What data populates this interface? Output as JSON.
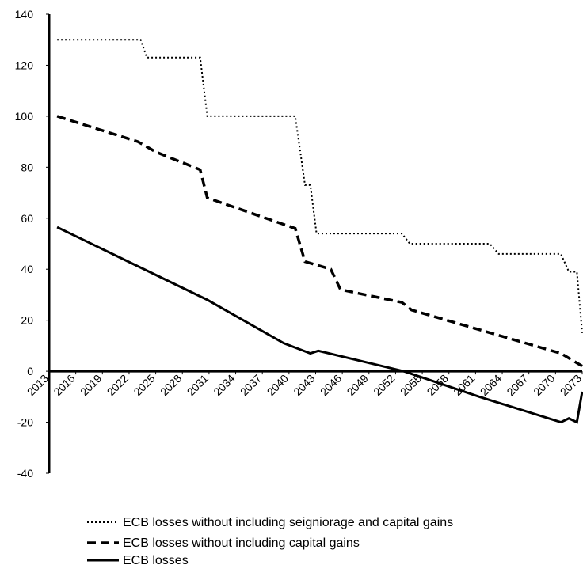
{
  "chart_data": {
    "type": "line",
    "xlim": [
      2013,
      2073
    ],
    "xticks": [
      2013,
      2016,
      2019,
      2022,
      2025,
      2028,
      2031,
      2034,
      2037,
      2040,
      2043,
      2046,
      2049,
      2052,
      2055,
      2058,
      2061,
      2064,
      2067,
      2070,
      2073
    ],
    "ylim": [
      -40,
      140
    ],
    "yticks": [
      -40,
      -20,
      0,
      20,
      40,
      60,
      80,
      100,
      120,
      140
    ],
    "grid": false,
    "legend": "bottom",
    "series": [
      {
        "name": "ECB losses without including seigniorage and capital gains",
        "color": "#000000",
        "style": "dotted",
        "x": [
          2013.9,
          2023.3,
          2024,
          2030,
          2030.8,
          2040.7,
          2041.8,
          2042.4,
          2043.1,
          2052.7,
          2053.6,
          2062.6,
          2063.6,
          2070.6,
          2071.5,
          2072.4,
          2073
        ],
        "values": [
          130,
          130,
          123,
          123,
          100,
          100,
          73,
          73,
          54,
          54,
          50,
          50,
          46,
          46,
          39,
          39,
          15
        ]
      },
      {
        "name": "ECB losses without including capital gains",
        "color": "#000000",
        "style": "dashed",
        "x": [
          2013.9,
          2023,
          2025,
          2029.3,
          2030,
          2030.8,
          2040.7,
          2041.8,
          2044.7,
          2045.8,
          2052.7,
          2053.8,
          2070.6,
          2073
        ],
        "values": [
          100,
          90,
          86,
          80,
          79,
          68,
          56,
          43,
          40,
          32,
          27,
          24,
          7,
          2
        ]
      },
      {
        "name": "ECB losses",
        "color": "#000000",
        "style": "solid",
        "x": [
          2013.9,
          2030.8,
          2039.4,
          2042.4,
          2043.3,
          2052.9,
          2061.4,
          2070.6,
          2071.5,
          2072.4,
          2073
        ],
        "values": [
          56.5,
          28,
          11,
          7,
          8,
          0,
          -10,
          -20,
          -18.5,
          -20,
          -8
        ]
      }
    ]
  }
}
